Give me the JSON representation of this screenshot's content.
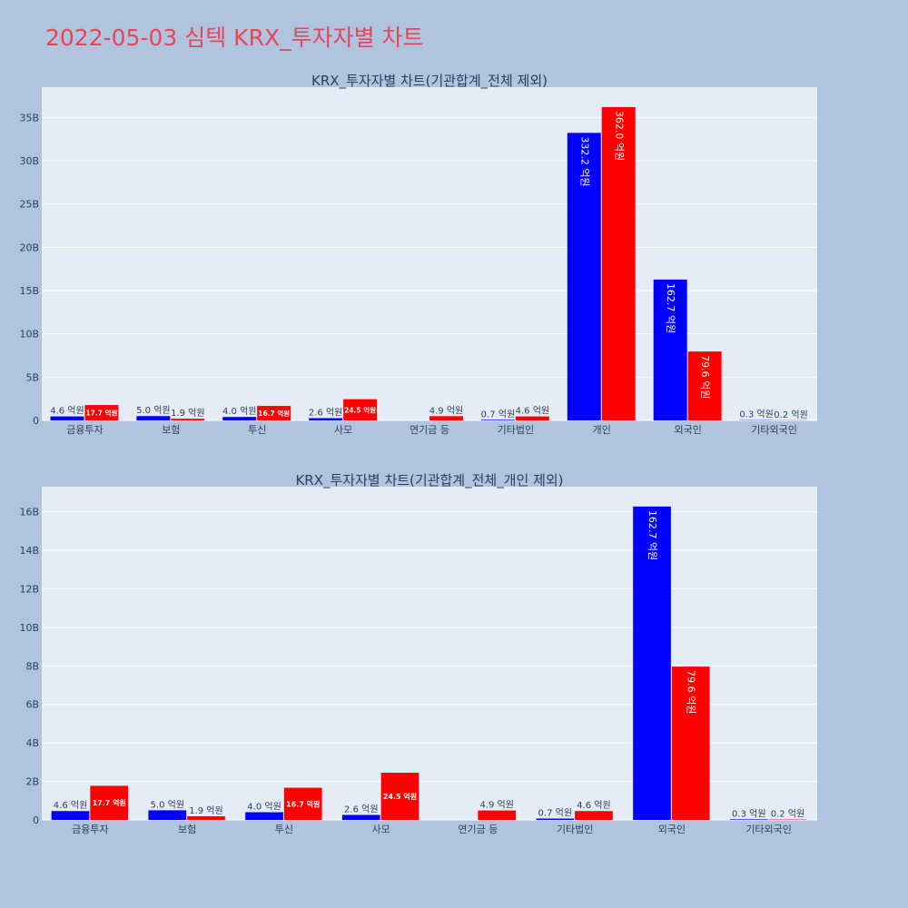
{
  "page": {
    "title": "2022-05-03 심텍 KRX_투자자별 차트"
  },
  "chart_data": [
    {
      "type": "bar",
      "title": "KRX_투자자별 차트(기관합계_전체 제외)",
      "categories": [
        "금융투자",
        "보험",
        "투신",
        "사모",
        "연기금 등",
        "기타법인",
        "개인",
        "외국인",
        "기타외국인"
      ],
      "series": [
        {
          "color": "#0000ff",
          "values": [
            460000000,
            500000000,
            400000000,
            260000000,
            0,
            70000000,
            33220000000,
            16270000000,
            30000000
          ],
          "labels": [
            "4.6 억원",
            "5.0 억원",
            "4.0 억원",
            "2.6 억원",
            "",
            "0.7 억원",
            "332.2 억원",
            "162.7 억원",
            "0.3 억원"
          ]
        },
        {
          "color": "#ff0000",
          "values": [
            1770000000,
            190000000,
            1670000000,
            2450000000,
            490000000,
            460000000,
            36200000000,
            7960000000,
            20000000
          ],
          "labels": [
            "17.7 억원",
            "1.9 억원",
            "16.7 억원",
            "24.5 억원",
            "4.9 억원",
            "4.6 억원",
            "362.0 억원",
            "79.6 억원",
            "0.2 억원"
          ]
        }
      ],
      "ylim": [
        0,
        38500000000
      ],
      "yticks": [
        0,
        5000000000,
        10000000000,
        15000000000,
        20000000000,
        25000000000,
        30000000000,
        35000000000
      ],
      "yticklabels": [
        "0",
        "5B",
        "10B",
        "15B",
        "20B",
        "25B",
        "30B",
        "35B"
      ]
    },
    {
      "type": "bar",
      "title": "KRX_투자자별 차트(기관합계_전체_개인 제외)",
      "categories": [
        "금융투자",
        "보험",
        "투신",
        "사모",
        "연기금 등",
        "기타법인",
        "외국인",
        "기타외국인"
      ],
      "series": [
        {
          "color": "#0000ff",
          "values": [
            460000000,
            500000000,
            400000000,
            260000000,
            0,
            70000000,
            16270000000,
            30000000
          ],
          "labels": [
            "4.6 억원",
            "5.0 억원",
            "4.0 억원",
            "2.6 억원",
            "",
            "0.7 억원",
            "162.7 억원",
            "0.3 억원"
          ]
        },
        {
          "color": "#ff0000",
          "values": [
            1770000000,
            190000000,
            1670000000,
            2450000000,
            490000000,
            460000000,
            7960000000,
            20000000
          ],
          "labels": [
            "17.7 억원",
            "1.9 억원",
            "16.7 억원",
            "24.5 억원",
            "4.9 억원",
            "4.6 억원",
            "79.6 억원",
            "0.2 억원"
          ]
        }
      ],
      "ylim": [
        0,
        17300000000
      ],
      "yticks": [
        0,
        2000000000,
        4000000000,
        6000000000,
        8000000000,
        10000000000,
        12000000000,
        14000000000,
        16000000000
      ],
      "yticklabels": [
        "0",
        "2B",
        "4B",
        "6B",
        "8B",
        "10B",
        "12B",
        "14B",
        "16B"
      ]
    }
  ]
}
